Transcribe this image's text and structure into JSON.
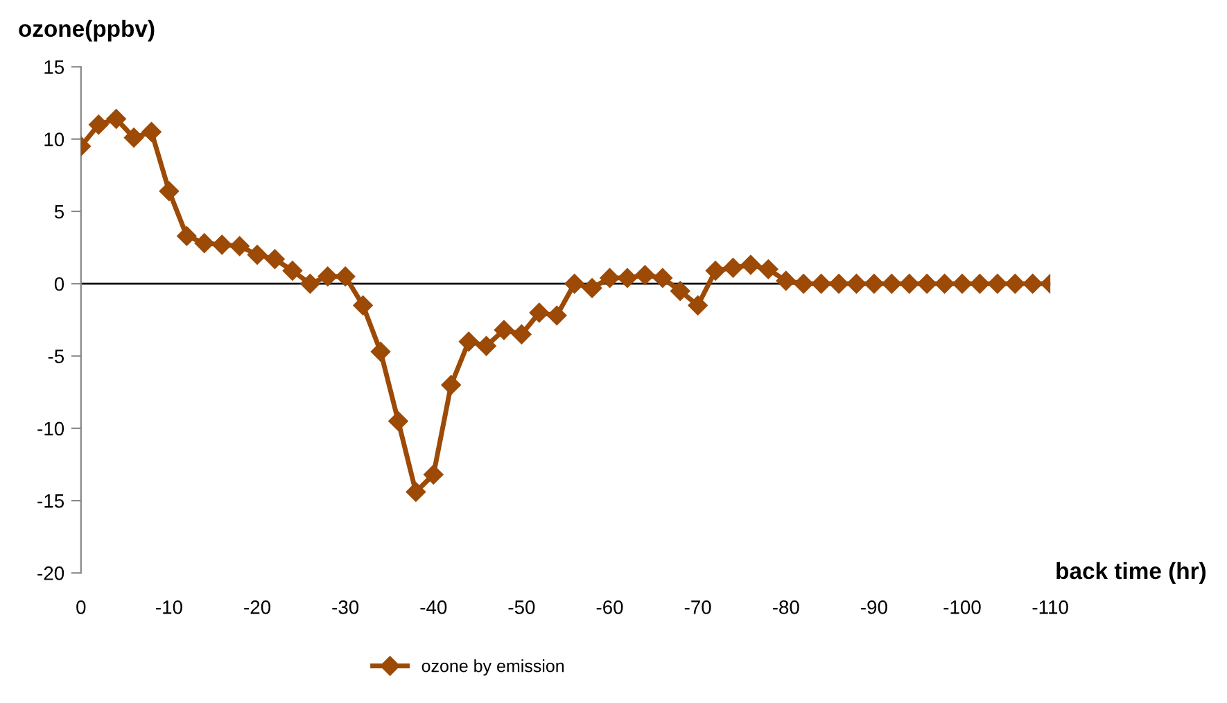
{
  "chart_data": {
    "type": "line",
    "xlabel": "back time (hr)",
    "ylabel": "ozone(ppbv)",
    "x": [
      0,
      -2,
      -4,
      -6,
      -8,
      -10,
      -12,
      -14,
      -16,
      -18,
      -20,
      -22,
      -24,
      -26,
      -28,
      -30,
      -32,
      -34,
      -36,
      -38,
      -40,
      -42,
      -44,
      -46,
      -48,
      -50,
      -52,
      -54,
      -56,
      -58,
      -60,
      -62,
      -64,
      -66,
      -68,
      -70,
      -72,
      -74,
      -76,
      -78,
      -80,
      -82,
      -84,
      -86,
      -88,
      -90,
      -92,
      -94,
      -96,
      -98,
      -100,
      -102,
      -104,
      -106,
      -108,
      -110
    ],
    "series": [
      {
        "name": "ozone by emission",
        "color": "#9c4a06",
        "values": [
          9.5,
          11.0,
          11.4,
          10.1,
          10.5,
          6.4,
          3.3,
          2.8,
          2.7,
          2.6,
          2.0,
          1.7,
          0.9,
          0.0,
          0.5,
          0.5,
          -1.5,
          -4.7,
          -9.5,
          -14.4,
          -13.2,
          -7.0,
          -4.0,
          -4.3,
          -3.2,
          -3.5,
          -2.0,
          -2.2,
          0.0,
          -0.3,
          0.4,
          0.4,
          0.6,
          0.4,
          -0.5,
          -1.5,
          0.9,
          1.1,
          1.3,
          1.0,
          0.2,
          0.0,
          0.0,
          0.0,
          0.0,
          0.0,
          0.0,
          0.0,
          0.0,
          0.0,
          0.0,
          0.0,
          0.0,
          0.0,
          0.0,
          0.0
        ]
      }
    ],
    "xlim": [
      0,
      -110
    ],
    "xticks": [
      0,
      -10,
      -20,
      -30,
      -40,
      -50,
      -60,
      -70,
      -80,
      -90,
      -100,
      -110
    ],
    "ylim": [
      -20,
      15
    ],
    "yticks": [
      -20,
      -15,
      -10,
      -5,
      0,
      5,
      10,
      15
    ],
    "ref_lines": [
      {
        "axis": "y",
        "value": 0,
        "color": "#000000"
      }
    ],
    "marker": "diamond",
    "line_style": "solid",
    "legend": "bottom",
    "grid": false
  }
}
